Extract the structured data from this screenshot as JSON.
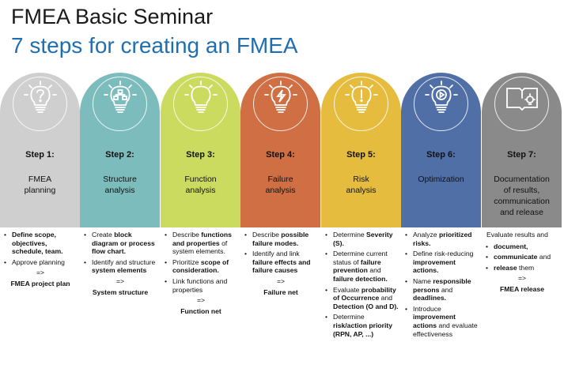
{
  "header": {
    "title": "FMEA Basic Seminar",
    "subtitle": "7 steps for creating an FMEA"
  },
  "colors": {
    "step1": "#cfcfcf",
    "step2": "#7dbcbd",
    "step3": "#cadb5f",
    "step4": "#cf6f43",
    "step5": "#e6bc3e",
    "step6": "#4f6fa6",
    "step7": "#8a8a8a"
  },
  "steps": [
    {
      "label": "Step 1:",
      "name": [
        "FMEA",
        "planning"
      ],
      "icon": "question-bulb-icon",
      "bullets": [
        [
          {
            "t": "Define scope, objectives, schedule, team.",
            "b": true
          }
        ],
        [
          {
            "t": "Approve planning",
            "b": false
          }
        ]
      ],
      "arrow": "=>",
      "result": "FMEA project plan"
    },
    {
      "label": "Step 2:",
      "name": [
        "Structure",
        "analysis"
      ],
      "icon": "structure-bulb-icon",
      "bullets": [
        [
          {
            "t": "Create ",
            "b": false
          },
          {
            "t": "block diagram or process flow chart.",
            "b": true
          }
        ],
        [
          {
            "t": "Identify and structure ",
            "b": false
          },
          {
            "t": "system elements",
            "b": true
          }
        ]
      ],
      "arrow": "=>",
      "result": "System structure"
    },
    {
      "label": "Step 3:",
      "name": [
        "Function",
        "analysis"
      ],
      "icon": "function-bulb-icon",
      "bullets": [
        [
          {
            "t": "Describe ",
            "b": false
          },
          {
            "t": "functions and properties",
            "b": true
          },
          {
            "t": " of system elements.",
            "b": false
          }
        ],
        [
          {
            "t": "Prioritize ",
            "b": false
          },
          {
            "t": "scope of consideration.",
            "b": true
          }
        ],
        [
          {
            "t": "Link functions and properties",
            "b": false
          }
        ]
      ],
      "arrow": "=>",
      "result": "Function net"
    },
    {
      "label": "Step 4:",
      "name": [
        "Failure",
        "analysis"
      ],
      "icon": "lightning-bulb-icon",
      "bullets": [
        [
          {
            "t": "Describe ",
            "b": false
          },
          {
            "t": "possible failure modes.",
            "b": true
          }
        ],
        [
          {
            "t": "Identify and link ",
            "b": false
          },
          {
            "t": "failure effects and failure causes",
            "b": true
          }
        ]
      ],
      "arrow": "=>",
      "result": "Failure net"
    },
    {
      "label": "Step 5:",
      "name": [
        "Risk",
        "analysis"
      ],
      "icon": "exclamation-bulb-icon",
      "bullets": [
        [
          {
            "t": "Determine ",
            "b": false
          },
          {
            "t": "Severity (S).",
            "b": true
          }
        ],
        [
          {
            "t": "Determine current status of ",
            "b": false
          },
          {
            "t": "failure prevention",
            "b": true
          },
          {
            "t": " and ",
            "b": false
          },
          {
            "t": "failure detection.",
            "b": true
          }
        ],
        [
          {
            "t": "Evaluate ",
            "b": false
          },
          {
            "t": "probability of Occurrence",
            "b": true
          },
          {
            "t": " and ",
            "b": false
          },
          {
            "t": "Detection (O and D).",
            "b": true
          }
        ],
        [
          {
            "t": "Determine ",
            "b": false
          },
          {
            "t": "risk/action priority (RPN, AP, ...)",
            "b": true
          }
        ]
      ],
      "arrow": "",
      "result": ""
    },
    {
      "label": "Step 6:",
      "name": [
        "Optimization"
      ],
      "icon": "play-bulb-icon",
      "bullets": [
        [
          {
            "t": "Analyze ",
            "b": false
          },
          {
            "t": "prioritized risks.",
            "b": true
          }
        ],
        [
          {
            "t": "Define risk-reducing ",
            "b": false
          },
          {
            "t": "improvement actions.",
            "b": true
          }
        ],
        [
          {
            "t": "Name ",
            "b": false
          },
          {
            "t": "responsible persons",
            "b": true
          },
          {
            "t": " and ",
            "b": false
          },
          {
            "t": "deadlines.",
            "b": true
          }
        ],
        [
          {
            "t": "Introduce ",
            "b": false
          },
          {
            "t": "improvement actions",
            "b": true
          },
          {
            "t": " and evaluate effectiveness",
            "b": false
          }
        ]
      ],
      "arrow": "",
      "result": ""
    },
    {
      "label": "Step 7:",
      "name": [
        "Documentation",
        "of results,",
        "communication",
        "and release"
      ],
      "icon": "book-bulb-icon",
      "intro": "Evaluate results and",
      "bullets": [
        [
          {
            "t": "document,",
            "b": true
          }
        ],
        [
          {
            "t": "communicate",
            "b": true
          },
          {
            "t": " and",
            "b": false
          }
        ],
        [
          {
            "t": "release",
            "b": true
          },
          {
            "t": " them",
            "b": false
          }
        ]
      ],
      "arrow": "=>",
      "result": "FMEA release"
    }
  ]
}
